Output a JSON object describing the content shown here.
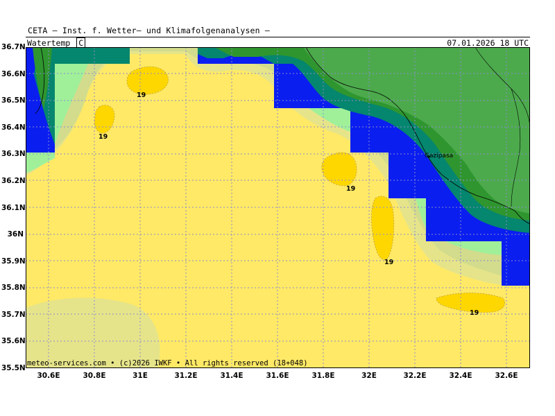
{
  "header": {
    "title": "CETA — Inst. f. Wetter— und Klimafolgenanalysen —",
    "variable": "Watertemp",
    "unit": "C",
    "valid_time": "07.01.2026 18 UTC"
  },
  "map": {
    "lat_labels": [
      "36.7N",
      "36.6N",
      "36.5N",
      "36.4N",
      "36.3N",
      "36.2N",
      "36.1N",
      "36N",
      "35.9N",
      "35.8N",
      "35.7N",
      "35.6N",
      "35.5N"
    ],
    "lon_labels": [
      "30.6E",
      "30.8E",
      "31E",
      "31.2E",
      "31.4E",
      "31.6E",
      "31.8E",
      "32E",
      "32.2E",
      "32.4E",
      "32.6E"
    ],
    "town": "Gazipasa",
    "isotherm_labels": [
      "19",
      "19",
      "19",
      "19",
      "19"
    ],
    "colors": {
      "warm_yellow": "#ffe966",
      "hot_yellow": "#ffd700",
      "pale_yellow": "#e6e48a",
      "khaki": "#d2dc8c",
      "light_green": "#a0f09a",
      "blue": "#0a1ef0",
      "teal": "#05866e",
      "dark_green": "#2f962f",
      "land_green": "#4caa4c"
    }
  },
  "footer": {
    "credit": "meteo-services.com • (c)2026 IWKF • All rights reserved (18+048)"
  }
}
